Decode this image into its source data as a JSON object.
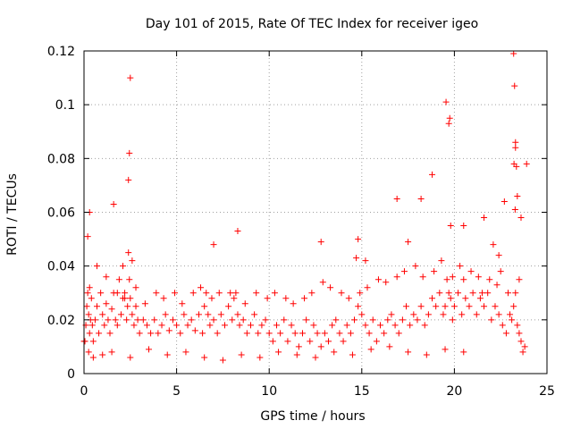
{
  "chart_data": {
    "type": "scatter",
    "title": "Day 101 of 2015, Rate Of TEC Index for receiver igeo",
    "xlabel": "GPS time / hours",
    "ylabel": "ROTI / TECUs",
    "xlim": [
      0,
      25
    ],
    "ylim": [
      0,
      0.12
    ],
    "grid": true,
    "marker": "plus",
    "color": "#ff0000",
    "x_ticks": [
      {
        "value": 0,
        "label": "0"
      },
      {
        "value": 5,
        "label": "5"
      },
      {
        "value": 10,
        "label": "10"
      },
      {
        "value": 15,
        "label": "15"
      },
      {
        "value": 20,
        "label": "20"
      },
      {
        "value": 25,
        "label": "25"
      }
    ],
    "y_ticks": [
      {
        "value": 0,
        "label": "0"
      },
      {
        "value": 0.02,
        "label": "0.02"
      },
      {
        "value": 0.04,
        "label": "0.04"
      },
      {
        "value": 0.06,
        "label": "0.06"
      },
      {
        "value": 0.08,
        "label": "0.08"
      },
      {
        "value": 0.1,
        "label": "0.1"
      },
      {
        "value": 0.12,
        "label": "0.12"
      }
    ],
    "series": [
      {
        "name": "ROTI",
        "x": [
          0.0,
          0.1,
          0.15,
          0.2,
          0.25,
          0.3,
          0.35,
          0.4,
          0.45,
          0.5,
          0.6,
          0.7,
          0.8,
          0.9,
          1.0,
          1.1,
          1.2,
          1.3,
          1.4,
          1.5,
          1.6,
          1.7,
          1.8,
          1.9,
          2.0,
          2.1,
          2.2,
          2.3,
          2.35,
          2.4,
          2.45,
          2.5,
          2.6,
          2.7,
          2.8,
          2.9,
          3.0,
          3.2,
          3.4,
          3.6,
          3.8,
          4.0,
          4.2,
          4.4,
          4.6,
          4.8,
          5.0,
          5.2,
          5.4,
          5.6,
          5.8,
          6.0,
          6.2,
          6.4,
          6.5,
          6.6,
          6.7,
          6.8,
          7.0,
          7.2,
          7.4,
          7.6,
          7.8,
          8.0,
          8.1,
          8.2,
          8.3,
          8.4,
          8.6,
          8.8,
          9.0,
          9.2,
          9.4,
          9.6,
          9.8,
          10.0,
          10.2,
          10.4,
          10.6,
          10.8,
          11.0,
          11.2,
          11.4,
          11.6,
          11.8,
          12.0,
          12.2,
          12.4,
          12.6,
          12.8,
          13.0,
          13.2,
          13.4,
          13.6,
          13.8,
          14.0,
          14.2,
          14.4,
          14.6,
          14.8,
          15.0,
          15.2,
          15.4,
          15.6,
          15.8,
          16.0,
          16.2,
          16.4,
          16.6,
          16.8,
          17.0,
          17.2,
          17.4,
          17.6,
          17.8,
          18.0,
          18.2,
          18.4,
          18.6,
          18.8,
          19.0,
          19.2,
          19.4,
          19.5,
          19.6,
          19.7,
          19.8,
          19.9,
          20.0,
          20.2,
          20.4,
          20.5,
          20.6,
          20.8,
          21.0,
          21.2,
          21.4,
          21.6,
          21.8,
          22.0,
          22.2,
          22.4,
          22.6,
          22.8,
          23.0,
          23.1,
          23.2,
          23.3,
          23.4,
          23.5,
          23.6,
          23.7,
          23.8,
          0.05,
          0.25,
          0.5,
          1.0,
          1.5,
          2.5,
          3.5,
          4.5,
          5.5,
          6.5,
          7.5,
          8.5,
          9.5,
          10.5,
          11.5,
          12.5,
          13.5,
          14.5,
          15.5,
          16.5,
          17.5,
          18.5,
          19.5,
          20.5,
          21.5,
          22.5,
          23.5,
          0.3,
          0.7,
          1.2,
          1.8,
          2.2,
          2.8,
          3.3,
          3.9,
          4.3,
          4.9,
          5.3,
          5.9,
          6.3,
          6.9,
          7.3,
          7.9,
          8.7,
          9.3,
          9.9,
          10.3,
          10.9,
          11.3,
          11.9,
          12.3,
          12.9,
          13.3,
          13.9,
          14.3,
          14.9,
          15.3,
          15.9,
          16.3,
          16.9,
          17.3,
          17.9,
          18.3,
          18.9,
          19.3,
          19.9,
          20.3,
          20.9,
          21.3,
          21.9,
          22.3,
          22.9,
          23.3,
          23.9,
          2.4,
          2.45,
          2.5,
          19.55,
          19.7,
          19.75,
          23.2,
          23.25,
          23.3,
          23.35,
          23.28,
          23.22,
          23.4,
          1.6,
          7.0,
          8.3,
          14.8,
          16.9,
          18.2,
          20.5,
          21.6,
          22.7,
          23.6,
          0.2,
          0.3,
          2.1,
          2.6,
          12.8,
          14.7,
          15.2,
          17.5,
          18.8,
          19.8,
          22.1,
          22.4
        ],
        "y": [
          0.012,
          0.018,
          0.025,
          0.03,
          0.022,
          0.015,
          0.02,
          0.028,
          0.018,
          0.012,
          0.02,
          0.025,
          0.015,
          0.03,
          0.022,
          0.018,
          0.026,
          0.02,
          0.015,
          0.024,
          0.03,
          0.02,
          0.018,
          0.035,
          0.022,
          0.028,
          0.03,
          0.02,
          0.025,
          0.045,
          0.035,
          0.028,
          0.022,
          0.018,
          0.025,
          0.02,
          0.015,
          0.02,
          0.018,
          0.015,
          0.02,
          0.015,
          0.018,
          0.022,
          0.016,
          0.02,
          0.018,
          0.015,
          0.022,
          0.018,
          0.02,
          0.016,
          0.022,
          0.015,
          0.025,
          0.03,
          0.022,
          0.018,
          0.02,
          0.015,
          0.022,
          0.018,
          0.025,
          0.02,
          0.028,
          0.03,
          0.022,
          0.018,
          0.02,
          0.015,
          0.018,
          0.022,
          0.015,
          0.018,
          0.02,
          0.015,
          0.012,
          0.018,
          0.015,
          0.02,
          0.012,
          0.018,
          0.015,
          0.01,
          0.015,
          0.02,
          0.012,
          0.018,
          0.015,
          0.01,
          0.015,
          0.012,
          0.018,
          0.02,
          0.015,
          0.012,
          0.018,
          0.015,
          0.02,
          0.025,
          0.022,
          0.018,
          0.015,
          0.02,
          0.012,
          0.018,
          0.015,
          0.02,
          0.022,
          0.018,
          0.015,
          0.02,
          0.025,
          0.018,
          0.022,
          0.02,
          0.025,
          0.018,
          0.022,
          0.028,
          0.025,
          0.03,
          0.022,
          0.025,
          0.035,
          0.03,
          0.028,
          0.02,
          0.025,
          0.03,
          0.022,
          0.035,
          0.028,
          0.025,
          0.03,
          0.022,
          0.028,
          0.025,
          0.03,
          0.02,
          0.025,
          0.022,
          0.018,
          0.015,
          0.022,
          0.02,
          0.025,
          0.03,
          0.018,
          0.015,
          0.012,
          0.008,
          0.01,
          0.012,
          0.008,
          0.006,
          0.007,
          0.008,
          0.006,
          0.009,
          0.007,
          0.008,
          0.006,
          0.005,
          0.007,
          0.006,
          0.008,
          0.007,
          0.006,
          0.008,
          0.007,
          0.009,
          0.01,
          0.008,
          0.007,
          0.009,
          0.008,
          0.03,
          0.038,
          0.035,
          0.032,
          0.04,
          0.036,
          0.03,
          0.028,
          0.032,
          0.026,
          0.03,
          0.028,
          0.03,
          0.026,
          0.03,
          0.032,
          0.028,
          0.03,
          0.03,
          0.026,
          0.03,
          0.028,
          0.03,
          0.028,
          0.026,
          0.028,
          0.03,
          0.034,
          0.032,
          0.03,
          0.028,
          0.03,
          0.032,
          0.035,
          0.034,
          0.036,
          0.038,
          0.04,
          0.036,
          0.038,
          0.042,
          0.036,
          0.04,
          0.038,
          0.036,
          0.035,
          0.033,
          0.03,
          0.084,
          0.078,
          0.072,
          0.082,
          0.11,
          0.101,
          0.093,
          0.095,
          0.119,
          0.107,
          0.086,
          0.077,
          0.061,
          0.078,
          0.066,
          0.063,
          0.048,
          0.053,
          0.05,
          0.065,
          0.065,
          0.055,
          0.058,
          0.064,
          0.058,
          0.051,
          0.06,
          0.04,
          0.042,
          0.049,
          0.043,
          0.042,
          0.049,
          0.074,
          0.055,
          0.048,
          0.044
        ]
      }
    ]
  }
}
